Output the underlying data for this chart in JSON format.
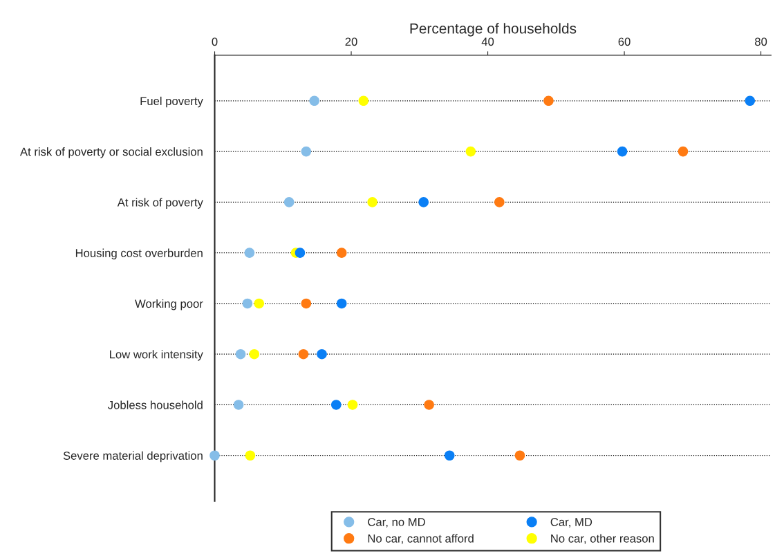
{
  "chart_data": {
    "type": "scatter",
    "orientation": "horizontal",
    "xlabel": "Percentage of households",
    "categories": [
      "Fuel poverty",
      "At risk of poverty or social exclusion",
      "At risk of poverty",
      "Housing cost overburden",
      "Working poor",
      "Low work intensity",
      "Jobless household",
      "Severe material deprivation"
    ],
    "series": [
      {
        "name": "Car, no MD",
        "color": "#85bde8",
        "values": [
          14.6,
          13.4,
          10.9,
          5.1,
          4.8,
          3.8,
          3.5,
          0
        ]
      },
      {
        "name": "Car, MD",
        "color": "#0a7ff5",
        "values": [
          78.4,
          59.7,
          30.6,
          12.5,
          18.6,
          15.7,
          17.8,
          34.4
        ]
      },
      {
        "name": "No car, cannot afford",
        "color": "#ff7a12",
        "values": [
          48.9,
          68.6,
          41.7,
          18.6,
          13.4,
          13.0,
          31.4,
          44.7
        ]
      },
      {
        "name": "No car, other reason",
        "color": "#ffff00",
        "values": [
          21.8,
          37.5,
          23.1,
          11.9,
          6.5,
          5.8,
          20.2,
          5.2
        ]
      }
    ],
    "xlim": [
      0,
      81.5
    ],
    "xticks": [
      0,
      20,
      40,
      60,
      80
    ],
    "grid": "y",
    "line_style": "dotted",
    "marker": "circle",
    "legend": "bottom"
  }
}
